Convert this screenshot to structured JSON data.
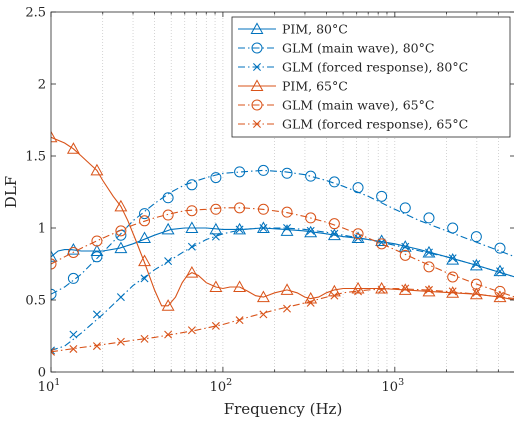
{
  "chart_data": {
    "type": "line",
    "xlabel": "Frequency (Hz)",
    "ylabel": "DLF",
    "xscale": "log",
    "xlim": [
      10,
      5000
    ],
    "ylim": [
      0,
      2.5
    ],
    "grid": "vertical minor dotted",
    "legend_placement": "top-right",
    "x_ticks": [
      {
        "value": 10,
        "base": "10",
        "exp": "1"
      },
      {
        "value": 100,
        "base": "10",
        "exp": "2"
      },
      {
        "value": 1000,
        "base": "10",
        "exp": "3"
      }
    ],
    "y_ticks": [
      "0",
      "0.5",
      "1",
      "1.5",
      "2",
      "2.5"
    ],
    "series": [
      {
        "name": "PIM, 80°C",
        "color": "#0072BD",
        "dash": "solid",
        "marker": "triangle",
        "x": [
          10,
          11,
          12,
          13,
          15,
          17,
          20,
          25,
          30,
          40,
          50,
          60,
          80,
          100,
          130,
          170,
          230,
          300,
          400,
          500,
          700,
          1000,
          1400,
          2000,
          3000,
          5000
        ],
        "y": [
          0.8,
          0.84,
          0.85,
          0.85,
          0.84,
          0.84,
          0.84,
          0.86,
          0.89,
          0.95,
          0.99,
          1.0,
          1.0,
          0.99,
          0.99,
          1.0,
          0.99,
          0.98,
          0.96,
          0.94,
          0.92,
          0.89,
          0.85,
          0.8,
          0.74,
          0.66
        ],
        "markers_x": [
          10,
          13.5,
          18.5,
          25.5,
          35,
          48,
          66,
          91,
          125,
          172,
          236,
          324,
          445,
          611,
          838,
          1150,
          1580,
          2170,
          2980,
          4090
        ],
        "markers_y": [
          0.8,
          0.85,
          0.84,
          0.86,
          0.93,
          0.99,
          1.0,
          0.99,
          0.99,
          1.0,
          0.98,
          0.97,
          0.95,
          0.93,
          0.91,
          0.87,
          0.83,
          0.78,
          0.74,
          0.7
        ]
      },
      {
        "name": "GLM (main wave), 80°C",
        "color": "#0072BD",
        "dash": "dashdot",
        "marker": "circle",
        "x": [
          10,
          12,
          15,
          20,
          25,
          30,
          40,
          50,
          60,
          80,
          100,
          130,
          170,
          230,
          300,
          400,
          500,
          700,
          1000,
          1400,
          2000,
          3000,
          5000
        ],
        "y": [
          0.54,
          0.59,
          0.68,
          0.83,
          0.95,
          1.05,
          1.17,
          1.25,
          1.3,
          1.35,
          1.38,
          1.39,
          1.4,
          1.39,
          1.37,
          1.33,
          1.29,
          1.22,
          1.13,
          1.05,
          0.98,
          0.9,
          0.8
        ],
        "markers_x": [
          10,
          13.5,
          18.5,
          25.5,
          35,
          48,
          66,
          91,
          125,
          172,
          236,
          324,
          445,
          611,
          838,
          1150,
          1580,
          2170,
          2980,
          4090
        ],
        "markers_y": [
          0.54,
          0.65,
          0.8,
          0.95,
          1.1,
          1.21,
          1.3,
          1.35,
          1.39,
          1.4,
          1.38,
          1.36,
          1.32,
          1.28,
          1.22,
          1.14,
          1.07,
          1.0,
          0.94,
          0.86
        ]
      },
      {
        "name": "GLM (forced response), 80°C",
        "color": "#0072BD",
        "dash": "dashdot",
        "marker": "x",
        "x": [
          10,
          12,
          15,
          20,
          25,
          30,
          40,
          50,
          60,
          80,
          100,
          130,
          170,
          230,
          300,
          400,
          500,
          700,
          1000,
          1400,
          2000,
          3000,
          5000
        ],
        "y": [
          0.15,
          0.18,
          0.27,
          0.4,
          0.51,
          0.6,
          0.71,
          0.78,
          0.84,
          0.92,
          0.96,
          0.99,
          1.0,
          1.0,
          0.99,
          0.97,
          0.95,
          0.92,
          0.88,
          0.84,
          0.8,
          0.74,
          0.66
        ],
        "markers_x": [
          10,
          13.5,
          18.5,
          25.5,
          35,
          48,
          66,
          91,
          125,
          172,
          236,
          324,
          445,
          611,
          838,
          1150,
          1580,
          2170,
          2980,
          4090
        ],
        "markers_y": [
          0.15,
          0.26,
          0.4,
          0.52,
          0.65,
          0.77,
          0.87,
          0.94,
          0.99,
          1.0,
          1.0,
          0.98,
          0.96,
          0.93,
          0.9,
          0.87,
          0.83,
          0.79,
          0.75,
          0.7
        ]
      },
      {
        "name": "PIM, 65°C",
        "color": "#D95319",
        "dash": "solid",
        "marker": "triangle",
        "x": [
          10,
          12,
          13.5,
          15,
          17,
          18.5,
          20,
          23,
          25.5,
          28,
          31,
          35,
          40,
          44,
          48,
          53,
          58,
          62,
          66,
          72,
          80,
          91,
          100,
          110,
          125,
          140,
          155,
          172,
          200,
          236,
          270,
          300,
          324,
          360,
          400,
          445,
          500,
          611,
          838,
          1150,
          1580,
          2170,
          2980,
          4090,
          5000
        ],
        "y": [
          1.63,
          1.59,
          1.55,
          1.5,
          1.44,
          1.4,
          1.33,
          1.22,
          1.15,
          1.05,
          0.92,
          0.76,
          0.57,
          0.46,
          0.46,
          0.52,
          0.62,
          0.67,
          0.69,
          0.67,
          0.62,
          0.59,
          0.58,
          0.59,
          0.59,
          0.56,
          0.53,
          0.52,
          0.55,
          0.57,
          0.55,
          0.52,
          0.51,
          0.52,
          0.55,
          0.57,
          0.58,
          0.58,
          0.58,
          0.57,
          0.56,
          0.55,
          0.54,
          0.52,
          0.5
        ],
        "markers_x": [
          10,
          13.5,
          18.5,
          25.5,
          35,
          48,
          66,
          91,
          125,
          172,
          236,
          324,
          445,
          611,
          838,
          1150,
          1580,
          2170,
          2980,
          4090
        ],
        "markers_y": [
          1.63,
          1.55,
          1.4,
          1.15,
          0.77,
          0.46,
          0.69,
          0.59,
          0.59,
          0.52,
          0.57,
          0.51,
          0.56,
          0.58,
          0.58,
          0.57,
          0.56,
          0.55,
          0.54,
          0.52
        ]
      },
      {
        "name": "GLM (main wave), 65°C",
        "color": "#D95319",
        "dash": "dashdot",
        "marker": "circle",
        "x": [
          10,
          12,
          15,
          20,
          25,
          30,
          40,
          50,
          60,
          80,
          100,
          130,
          170,
          230,
          300,
          400,
          500,
          700,
          1000,
          1400,
          2000,
          3000,
          5000
        ],
        "y": [
          0.75,
          0.8,
          0.86,
          0.93,
          0.98,
          1.02,
          1.07,
          1.1,
          1.12,
          1.13,
          1.14,
          1.14,
          1.13,
          1.11,
          1.08,
          1.04,
          1.0,
          0.93,
          0.85,
          0.77,
          0.69,
          0.61,
          0.52
        ],
        "markers_x": [
          10,
          13.5,
          18.5,
          25.5,
          35,
          48,
          66,
          91,
          125,
          172,
          236,
          324,
          445,
          611,
          838,
          1150,
          1580,
          2170,
          2980,
          4090
        ],
        "markers_y": [
          0.75,
          0.83,
          0.91,
          0.98,
          1.05,
          1.09,
          1.12,
          1.13,
          1.14,
          1.13,
          1.11,
          1.07,
          1.03,
          0.96,
          0.89,
          0.81,
          0.73,
          0.66,
          0.61,
          0.56
        ]
      },
      {
        "name": "GLM (forced response), 65°C",
        "color": "#D95319",
        "dash": "dashdot",
        "marker": "x",
        "x": [
          10,
          15,
          20,
          30,
          40,
          50,
          70,
          100,
          150,
          200,
          300,
          400,
          500,
          700,
          1000,
          1500,
          2000,
          3000,
          5000
        ],
        "y": [
          0.14,
          0.17,
          0.19,
          0.22,
          0.24,
          0.26,
          0.29,
          0.33,
          0.39,
          0.43,
          0.48,
          0.52,
          0.55,
          0.57,
          0.58,
          0.57,
          0.56,
          0.54,
          0.51
        ],
        "markers_x": [
          10,
          13.5,
          18.5,
          25.5,
          35,
          48,
          66,
          91,
          125,
          172,
          236,
          324,
          445,
          611,
          838,
          1150,
          1580,
          2170,
          2980,
          4090
        ],
        "markers_y": [
          0.14,
          0.16,
          0.18,
          0.21,
          0.23,
          0.26,
          0.29,
          0.32,
          0.36,
          0.4,
          0.44,
          0.48,
          0.53,
          0.56,
          0.57,
          0.58,
          0.57,
          0.56,
          0.55,
          0.53
        ]
      }
    ]
  }
}
